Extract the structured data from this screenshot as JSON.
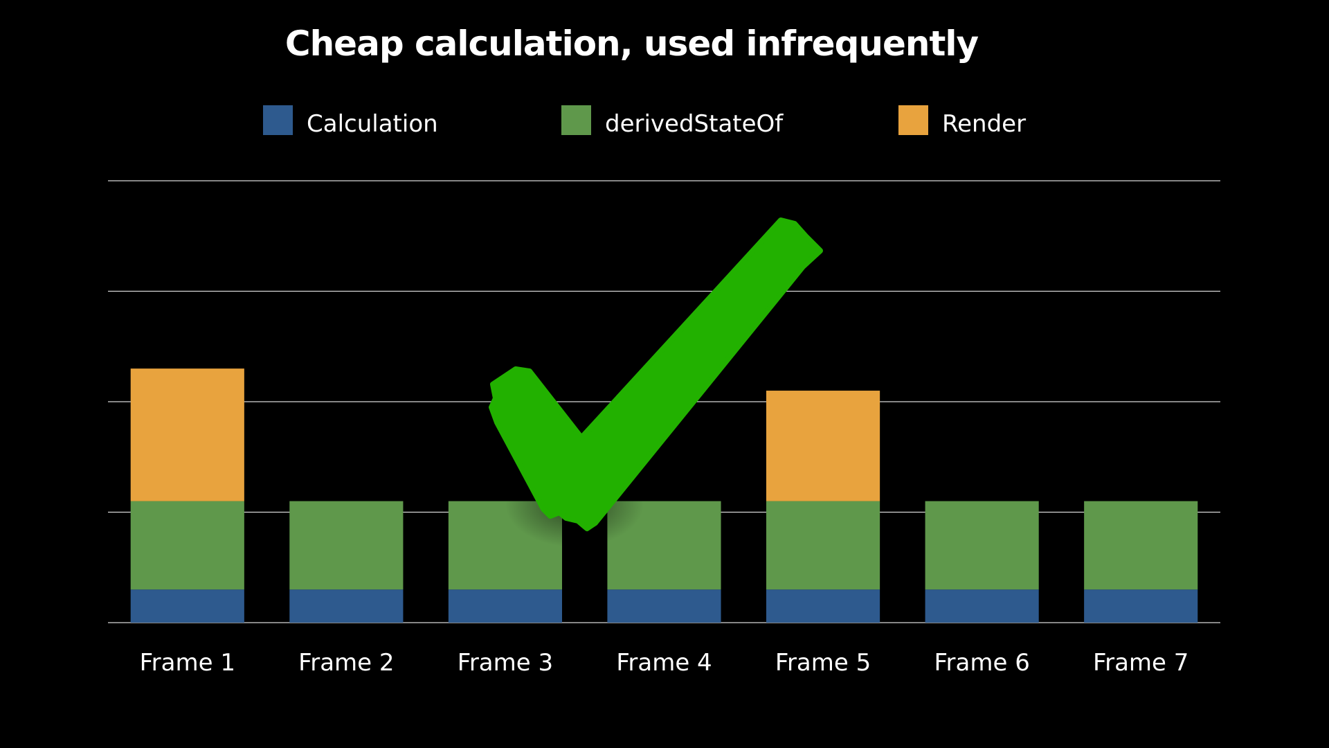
{
  "chart_data": {
    "type": "bar",
    "stacked": true,
    "title": "Cheap calculation, used infrequently",
    "xlabel": "",
    "ylabel": "",
    "categories": [
      "Frame 1",
      "Frame 2",
      "Frame 3",
      "Frame 4",
      "Frame 5",
      "Frame 6",
      "Frame 7"
    ],
    "series": [
      {
        "name": "Calculation",
        "color": "#2e5a8e",
        "values": [
          0.3,
          0.3,
          0.3,
          0.3,
          0.3,
          0.3,
          0.3
        ]
      },
      {
        "name": "derivedStateOf",
        "color": "#5f984b",
        "values": [
          0.8,
          0.8,
          0.8,
          0.8,
          0.8,
          0.8,
          0.8
        ]
      },
      {
        "name": "Render",
        "color": "#e8a33e",
        "values": [
          1.2,
          0,
          0,
          0,
          1.0,
          0,
          0
        ]
      }
    ],
    "ylim": [
      0,
      4
    ],
    "yticks": [
      0,
      1,
      2,
      3,
      4
    ],
    "grid": true,
    "legend": "top",
    "annotation": {
      "type": "checkmark-icon",
      "color": "#22b100"
    }
  }
}
